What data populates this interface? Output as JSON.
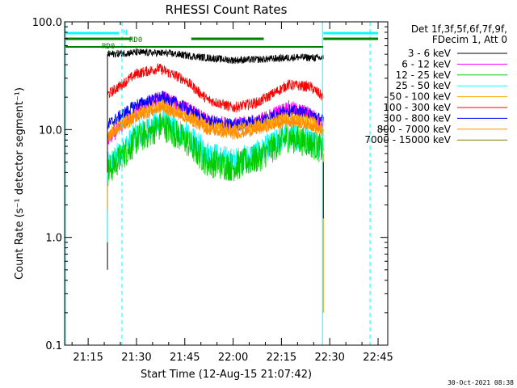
{
  "chart_data": {
    "type": "line",
    "title": "RHESSI Count Rates",
    "xlabel": "Start Time (12-Aug-15 21:07:42)",
    "ylabel": "Count Rate (s⁻¹ detector segment⁻¹)",
    "yscale": "log",
    "ylim": [
      0.1,
      100.0
    ],
    "xlim": [
      "21:07:42",
      "22:48:00"
    ],
    "x_ticks": [
      "21:15",
      "21:30",
      "21:45",
      "22:00",
      "22:15",
      "22:30",
      "22:45"
    ],
    "y_ticks": [
      "0.1",
      "1.0",
      "10.0",
      "100.0"
    ],
    "grid": false,
    "legend_position": "top-right",
    "legend_header": [
      "Det 1f,3f,5f,6f,7f,9f,",
      "FDecim 1, Att 0"
    ],
    "timestamp": "30-Oct-2021 08:38",
    "data_interval": [
      "21:21:00",
      "22:28:00"
    ],
    "series": [
      {
        "name": "3 - 6 keV",
        "color": "#000000",
        "points": [
          [
            "21:21",
            50
          ],
          [
            "21:30",
            52
          ],
          [
            "21:40",
            51
          ],
          [
            "21:50",
            47
          ],
          [
            "22:00",
            44
          ],
          [
            "22:10",
            45
          ],
          [
            "22:20",
            47
          ],
          [
            "22:28",
            46
          ]
        ]
      },
      {
        "name": "6 - 12 keV",
        "color": "#ff00ff",
        "points": [
          [
            "21:21",
            8
          ],
          [
            "21:30",
            15
          ],
          [
            "21:38",
            20
          ],
          [
            "21:45",
            16
          ],
          [
            "21:52",
            12
          ],
          [
            "22:00",
            11
          ],
          [
            "22:08",
            12
          ],
          [
            "22:17",
            16
          ],
          [
            "22:24",
            14
          ],
          [
            "22:28",
            11
          ]
        ]
      },
      {
        "name": "12 - 25 keV",
        "color": "#00cc00",
        "points": [
          [
            "21:21",
            4
          ],
          [
            "21:30",
            8
          ],
          [
            "21:38",
            11
          ],
          [
            "21:45",
            8
          ],
          [
            "21:52",
            5
          ],
          [
            "22:00",
            4.5
          ],
          [
            "22:08",
            5.5
          ],
          [
            "22:17",
            8.5
          ],
          [
            "22:24",
            7.5
          ],
          [
            "22:28",
            6.5
          ]
        ]
      },
      {
        "name": "25 - 50 keV",
        "color": "#00ffff",
        "points": [
          [
            "21:21",
            4.5
          ],
          [
            "21:30",
            9
          ],
          [
            "21:38",
            12
          ],
          [
            "21:45",
            9
          ],
          [
            "21:52",
            6
          ],
          [
            "22:00",
            5
          ],
          [
            "22:08",
            6
          ],
          [
            "22:17",
            9
          ],
          [
            "22:24",
            8
          ],
          [
            "22:28",
            7
          ]
        ]
      },
      {
        "name": "50 - 100 keV",
        "color": "#ffa500",
        "points": [
          [
            "21:21",
            9
          ],
          [
            "21:30",
            14
          ],
          [
            "21:38",
            17
          ],
          [
            "21:45",
            14
          ],
          [
            "21:52",
            11
          ],
          [
            "22:00",
            10
          ],
          [
            "22:08",
            11
          ],
          [
            "22:17",
            13
          ],
          [
            "22:24",
            12
          ],
          [
            "22:28",
            10
          ]
        ]
      },
      {
        "name": "100 - 300 keV",
        "color": "#ff0000",
        "points": [
          [
            "21:21",
            21
          ],
          [
            "21:30",
            33
          ],
          [
            "21:37",
            37
          ],
          [
            "21:45",
            29
          ],
          [
            "21:52",
            19
          ],
          [
            "22:00",
            16
          ],
          [
            "22:08",
            18
          ],
          [
            "22:17",
            26
          ],
          [
            "22:24",
            25
          ],
          [
            "22:28",
            20
          ]
        ]
      },
      {
        "name": "300 - 800 keV",
        "color": "#0000ff",
        "points": [
          [
            "21:21",
            11
          ],
          [
            "21:30",
            17
          ],
          [
            "21:38",
            20
          ],
          [
            "21:45",
            16
          ],
          [
            "21:52",
            12
          ],
          [
            "22:00",
            11
          ],
          [
            "22:08",
            12
          ],
          [
            "22:17",
            15
          ],
          [
            "22:24",
            14
          ],
          [
            "22:28",
            12
          ]
        ]
      },
      {
        "name": "800 - 7000 keV",
        "color": "#ff8c00",
        "points": [
          [
            "21:21",
            8.5
          ],
          [
            "21:30",
            13
          ],
          [
            "21:38",
            16
          ],
          [
            "21:45",
            13
          ],
          [
            "21:52",
            10
          ],
          [
            "22:00",
            9
          ],
          [
            "22:08",
            10
          ],
          [
            "22:17",
            12
          ],
          [
            "22:24",
            11
          ],
          [
            "22:28",
            9.5
          ]
        ]
      },
      {
        "name": "7000 - 15000 keV",
        "color": "#808000",
        "points": []
      }
    ],
    "annotations": [
      {
        "text": "N",
        "color": "#00ffff"
      },
      {
        "text": "RD0",
        "color": "#008000"
      },
      {
        "text": "RD0",
        "color": "#008000"
      }
    ]
  }
}
